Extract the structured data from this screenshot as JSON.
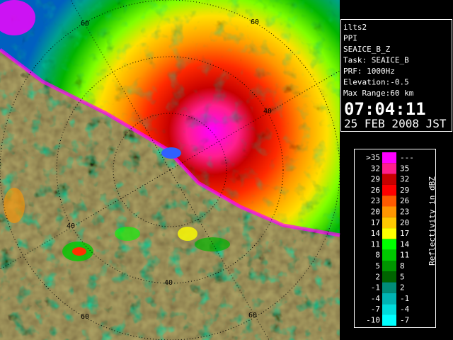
{
  "info": {
    "lines": [
      "ilts2",
      "PPI",
      "SEAICE_B_Z",
      "Task: SEAICE_B",
      "PRF: 1000Hz",
      "Elevation:-0.5",
      "Max Range:60 km"
    ],
    "time": "07:04:11",
    "date": "25 FEB 2008 JST"
  },
  "legend": {
    "title": "Reflectivity in dBZ",
    "rows": [
      {
        "low": ">35",
        "high": "---",
        "color": "#ff00ff"
      },
      {
        "low": "32",
        "high": "35",
        "color": "#ff1e8c"
      },
      {
        "low": "29",
        "high": "32",
        "color": "#c80000"
      },
      {
        "low": "26",
        "high": "29",
        "color": "#ff0000"
      },
      {
        "low": "23",
        "high": "26",
        "color": "#ff5a00"
      },
      {
        "low": "20",
        "high": "23",
        "color": "#ff9600"
      },
      {
        "low": "17",
        "high": "20",
        "color": "#ffc800"
      },
      {
        "low": "14",
        "high": "17",
        "color": "#ffff00"
      },
      {
        "low": "11",
        "high": "14",
        "color": "#00ff00"
      },
      {
        "low": "8",
        "high": "11",
        "color": "#00c800"
      },
      {
        "low": "5",
        "high": "8",
        "color": "#009600"
      },
      {
        "low": "2",
        "high": "5",
        "color": "#006400"
      },
      {
        "low": "-1",
        "high": "2",
        "color": "#008c78"
      },
      {
        "low": "-4",
        "high": "-1",
        "color": "#00b4b4"
      },
      {
        "low": "-7",
        "high": "-4",
        "color": "#00dcdc"
      },
      {
        "low": "-10",
        "high": "-7",
        "color": "#00ffff"
      }
    ]
  },
  "range_rings": {
    "labels": [
      "60",
      "60",
      "40",
      "40",
      "40",
      "60",
      "60"
    ]
  }
}
